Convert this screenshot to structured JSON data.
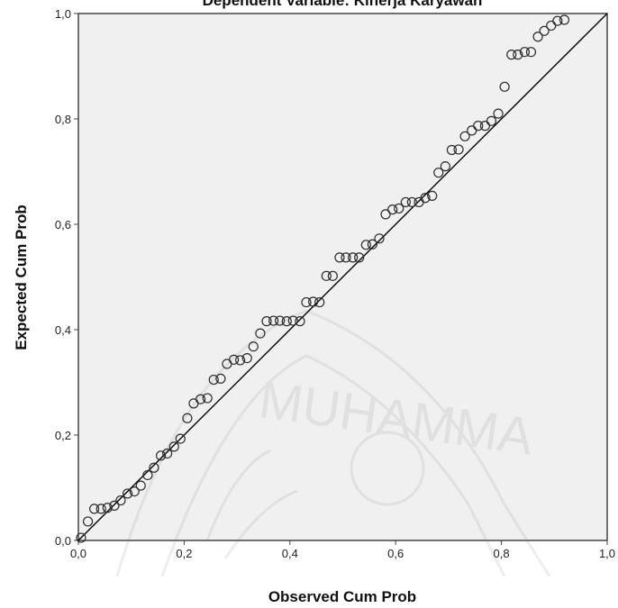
{
  "chart_data": {
    "type": "scatter",
    "title": "Dependent Variable: Kinerja Karyawan",
    "xlabel": "Observed Cum Prob",
    "ylabel": "Expected Cum Prob",
    "xlim": [
      0,
      1
    ],
    "ylim": [
      0,
      1
    ],
    "xticks": [
      "0,0",
      "0,2",
      "0,4",
      "0,6",
      "0,8",
      "1,0"
    ],
    "yticks": [
      "0,0",
      "0,2",
      "0,4",
      "0,6",
      "0,8",
      "1,0"
    ],
    "grid": false,
    "reference_line": {
      "from": [
        0,
        0
      ],
      "to": [
        1,
        1
      ]
    },
    "series": [
      {
        "points": [
          [
            0.005,
            0.005
          ],
          [
            0.018,
            0.036
          ],
          [
            0.03,
            0.06
          ],
          [
            0.043,
            0.06
          ],
          [
            0.055,
            0.062
          ],
          [
            0.068,
            0.066
          ],
          [
            0.08,
            0.076
          ],
          [
            0.093,
            0.089
          ],
          [
            0.106,
            0.093
          ],
          [
            0.118,
            0.104
          ],
          [
            0.131,
            0.124
          ],
          [
            0.143,
            0.138
          ],
          [
            0.156,
            0.161
          ],
          [
            0.168,
            0.165
          ],
          [
            0.181,
            0.178
          ],
          [
            0.193,
            0.193
          ],
          [
            0.206,
            0.232
          ],
          [
            0.218,
            0.26
          ],
          [
            0.231,
            0.268
          ],
          [
            0.244,
            0.27
          ],
          [
            0.256,
            0.305
          ],
          [
            0.269,
            0.307
          ],
          [
            0.281,
            0.335
          ],
          [
            0.294,
            0.343
          ],
          [
            0.306,
            0.342
          ],
          [
            0.319,
            0.346
          ],
          [
            0.331,
            0.368
          ],
          [
            0.344,
            0.393
          ],
          [
            0.356,
            0.416
          ],
          [
            0.369,
            0.417
          ],
          [
            0.381,
            0.417
          ],
          [
            0.394,
            0.416
          ],
          [
            0.406,
            0.417
          ],
          [
            0.419,
            0.416
          ],
          [
            0.431,
            0.452
          ],
          [
            0.444,
            0.453
          ],
          [
            0.456,
            0.452
          ],
          [
            0.469,
            0.502
          ],
          [
            0.481,
            0.502
          ],
          [
            0.494,
            0.537
          ],
          [
            0.506,
            0.537
          ],
          [
            0.519,
            0.537
          ],
          [
            0.531,
            0.537
          ],
          [
            0.544,
            0.561
          ],
          [
            0.556,
            0.562
          ],
          [
            0.569,
            0.573
          ],
          [
            0.581,
            0.619
          ],
          [
            0.594,
            0.628
          ],
          [
            0.606,
            0.63
          ],
          [
            0.619,
            0.642
          ],
          [
            0.631,
            0.642
          ],
          [
            0.644,
            0.642
          ],
          [
            0.656,
            0.65
          ],
          [
            0.669,
            0.654
          ],
          [
            0.681,
            0.698
          ],
          [
            0.694,
            0.71
          ],
          [
            0.706,
            0.741
          ],
          [
            0.719,
            0.742
          ],
          [
            0.731,
            0.767
          ],
          [
            0.744,
            0.778
          ],
          [
            0.756,
            0.787
          ],
          [
            0.769,
            0.787
          ],
          [
            0.781,
            0.796
          ],
          [
            0.794,
            0.81
          ],
          [
            0.806,
            0.861
          ],
          [
            0.819,
            0.922
          ],
          [
            0.831,
            0.922
          ],
          [
            0.844,
            0.927
          ],
          [
            0.856,
            0.927
          ],
          [
            0.869,
            0.956
          ],
          [
            0.881,
            0.967
          ],
          [
            0.894,
            0.977
          ],
          [
            0.906,
            0.986
          ],
          [
            0.919,
            0.988
          ]
        ]
      }
    ],
    "colors": {
      "plot_background": "#f0f0f0",
      "marker_edge": "#2b2b2b",
      "line": "#000000"
    }
  }
}
